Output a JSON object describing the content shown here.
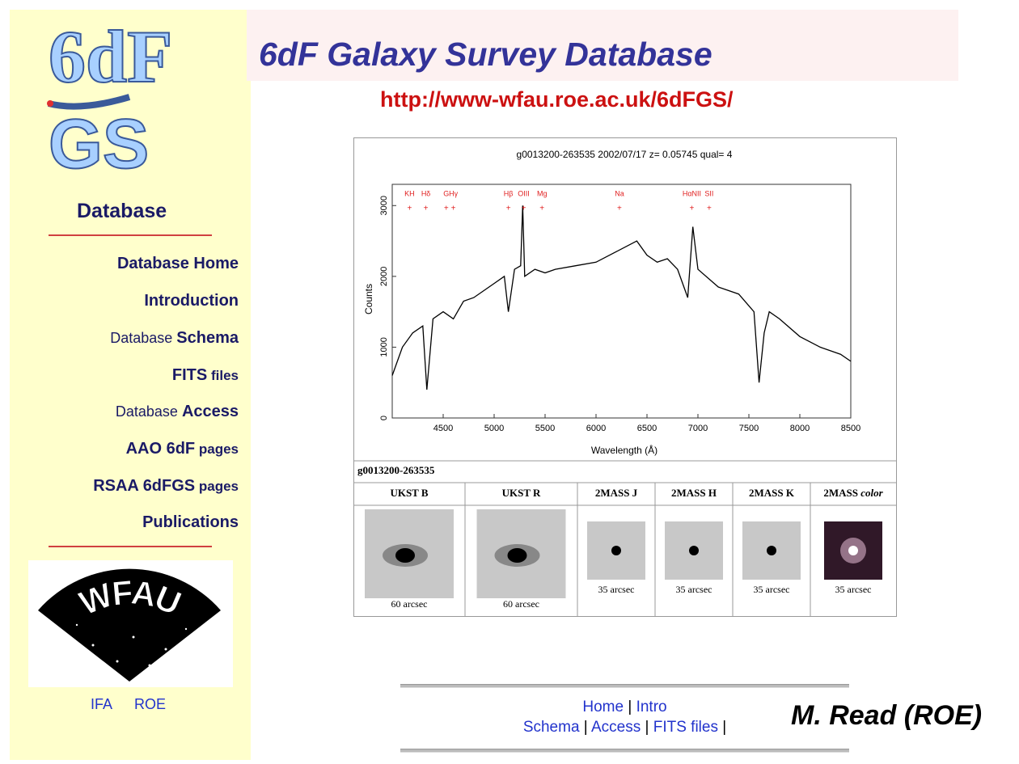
{
  "header": {
    "title": "6dF Galaxy Survey Database",
    "url": "http://www-wfau.roe.ac.uk/6dFGS/"
  },
  "logo": {
    "top": "6dF",
    "bottom": "GS",
    "caption": "Database"
  },
  "nav": [
    [
      "Database Home"
    ],
    [
      "Introduction"
    ],
    [
      "Database ",
      "Schema"
    ],
    [
      "FITS",
      " files"
    ],
    [
      "Database ",
      "Access"
    ],
    [
      "AAO 6dF",
      " pages"
    ],
    [
      "RSAA 6dFGS",
      " pages"
    ],
    [
      "Publications"
    ]
  ],
  "wfau": {
    "text": "WFAU",
    "links": [
      "IFA",
      "ROE"
    ]
  },
  "spectrum": {
    "title": "g0013200-263535 2002/07/17 z= 0.05745 qual= 4",
    "xlabel": "Wavelength (Å)",
    "ylabel": "Counts",
    "xlim": [
      4000,
      8500
    ],
    "ylim": [
      0,
      3300
    ],
    "xticks": [
      4500,
      5000,
      5500,
      6000,
      6500,
      7000,
      7500,
      8000,
      8500
    ],
    "yticks": [
      0,
      1000,
      2000,
      3000
    ],
    "x": [
      4000,
      4100,
      4200,
      4300,
      4340,
      4400,
      4500,
      4600,
      4700,
      4800,
      4900,
      5000,
      5100,
      5140,
      5200,
      5260,
      5280,
      5300,
      5400,
      5500,
      5600,
      5800,
      6000,
      6200,
      6400,
      6500,
      6600,
      6700,
      6800,
      6900,
      6950,
      7000,
      7200,
      7400,
      7550,
      7600,
      7650,
      7700,
      7800,
      8000,
      8200,
      8400,
      8500
    ],
    "counts": [
      600,
      1000,
      1200,
      1300,
      400,
      1400,
      1500,
      1400,
      1650,
      1700,
      1800,
      1900,
      2000,
      1500,
      2100,
      2150,
      3000,
      2000,
      2100,
      2050,
      2100,
      2150,
      2200,
      2350,
      2500,
      2300,
      2200,
      2250,
      2100,
      1700,
      2700,
      2100,
      1850,
      1750,
      1500,
      500,
      1200,
      1500,
      1400,
      1150,
      1000,
      900,
      800
    ],
    "lines": [
      {
        "label": "KH",
        "x": 4170
      },
      {
        "label": "Hδ",
        "x": 4330
      },
      {
        "label": "G",
        "x": 4530
      },
      {
        "label": "Hγ",
        "x": 4600
      },
      {
        "label": "Hβ",
        "x": 5140
      },
      {
        "label": "OIII",
        "x": 5290
      },
      {
        "label": "Mg",
        "x": 5470
      },
      {
        "label": "Na",
        "x": 6230
      },
      {
        "label": "HαNII",
        "x": 6940
      },
      {
        "label": "SII",
        "x": 7110
      }
    ]
  },
  "table": {
    "id": "g0013200-263535",
    "thumbs": [
      {
        "header": "UKST B",
        "caption": "60 arcsec"
      },
      {
        "header": "UKST R",
        "caption": "60 arcsec"
      },
      {
        "header": "2MASS J",
        "caption": "35 arcsec"
      },
      {
        "header": "2MASS H",
        "caption": "35 arcsec"
      },
      {
        "header": "2MASS K",
        "caption": "35 arcsec"
      },
      {
        "header": "2MASS ",
        "header_italic": "color",
        "caption": "35 arcsec"
      }
    ]
  },
  "footer": {
    "row1": [
      "Home",
      " | ",
      "Intro"
    ],
    "row2": [
      "Schema",
      " | ",
      "Access",
      " | ",
      "FITS files",
      " |"
    ],
    "author": "M. Read (ROE)"
  }
}
